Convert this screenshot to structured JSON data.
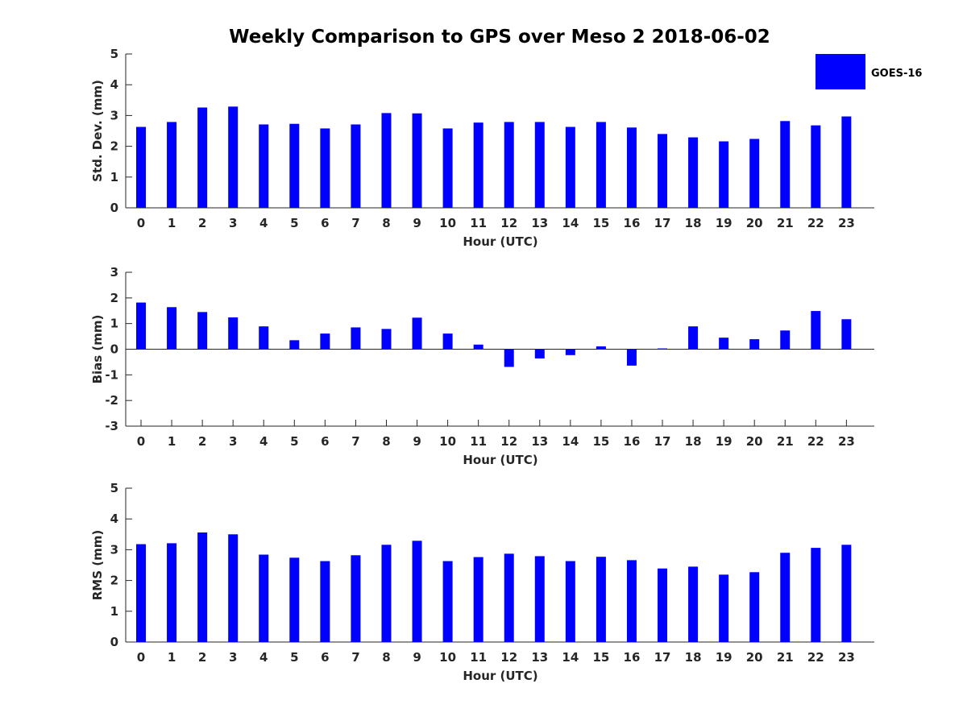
{
  "figure": {
    "title": "Weekly Comparison to GPS over Meso 2 2018-06-02"
  },
  "legend": {
    "label": "GOES-16",
    "color": "#0000ff"
  },
  "chart_data": [
    {
      "type": "bar",
      "name": "std-dev",
      "xlabel": "Hour (UTC)",
      "ylabel": "Std. Dev. (mm)",
      "ylim": [
        0,
        5
      ],
      "yticks": [
        "0",
        "1",
        "2",
        "3",
        "4",
        "5"
      ],
      "categories": [
        "0",
        "1",
        "2",
        "3",
        "4",
        "5",
        "6",
        "7",
        "8",
        "9",
        "10",
        "11",
        "12",
        "13",
        "14",
        "15",
        "16",
        "17",
        "18",
        "19",
        "20",
        "21",
        "22",
        "23"
      ],
      "series": [
        {
          "name": "GOES-16",
          "color": "#0000ff",
          "values": [
            2.63,
            2.79,
            3.26,
            3.29,
            2.71,
            2.73,
            2.58,
            2.71,
            3.08,
            3.07,
            2.58,
            2.77,
            2.79,
            2.79,
            2.63,
            2.79,
            2.61,
            2.4,
            2.29,
            2.16,
            2.24,
            2.82,
            2.68,
            2.97
          ]
        }
      ]
    },
    {
      "type": "bar",
      "name": "bias",
      "xlabel": "Hour (UTC)",
      "ylabel": "Bias (mm)",
      "ylim": [
        -3,
        3
      ],
      "yticks": [
        "-3",
        "-2",
        "-1",
        "0",
        "1",
        "2",
        "3"
      ],
      "categories": [
        "0",
        "1",
        "2",
        "3",
        "4",
        "5",
        "6",
        "7",
        "8",
        "9",
        "10",
        "11",
        "12",
        "13",
        "14",
        "15",
        "16",
        "17",
        "18",
        "19",
        "20",
        "21",
        "22",
        "23"
      ],
      "series": [
        {
          "name": "GOES-16",
          "color": "#0000ff",
          "values": [
            1.82,
            1.64,
            1.45,
            1.24,
            0.89,
            0.35,
            0.61,
            0.85,
            0.79,
            1.23,
            0.61,
            0.18,
            -0.69,
            -0.36,
            -0.23,
            0.11,
            -0.64,
            0.03,
            0.89,
            0.45,
            0.39,
            0.73,
            1.49,
            1.17
          ]
        }
      ]
    },
    {
      "type": "bar",
      "name": "rms",
      "xlabel": "Hour (UTC)",
      "ylabel": "RMS (mm)",
      "ylim": [
        0,
        5
      ],
      "yticks": [
        "0",
        "1",
        "2",
        "3",
        "4",
        "5"
      ],
      "categories": [
        "0",
        "1",
        "2",
        "3",
        "4",
        "5",
        "6",
        "7",
        "8",
        "9",
        "10",
        "11",
        "12",
        "13",
        "14",
        "15",
        "16",
        "17",
        "18",
        "19",
        "20",
        "21",
        "22",
        "23"
      ],
      "series": [
        {
          "name": "GOES-16",
          "color": "#0000ff",
          "values": [
            3.18,
            3.21,
            3.56,
            3.5,
            2.84,
            2.74,
            2.63,
            2.82,
            3.16,
            3.29,
            2.63,
            2.76,
            2.87,
            2.79,
            2.63,
            2.77,
            2.66,
            2.39,
            2.45,
            2.19,
            2.27,
            2.9,
            3.06,
            3.16
          ]
        }
      ]
    }
  ]
}
